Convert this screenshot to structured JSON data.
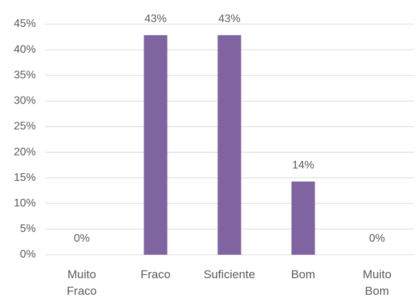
{
  "chart_data": {
    "type": "bar",
    "categories": [
      "Muito Fraco",
      "Fraco",
      "Suficiente",
      "Bom",
      "Muito Bom"
    ],
    "values": [
      0,
      42.86,
      42.86,
      14.29,
      0
    ],
    "value_labels": [
      "0%",
      "43%",
      "43%",
      "14%",
      "0%"
    ],
    "color": "#8064a2",
    "ylim": [
      0,
      45
    ],
    "yticks": [
      {
        "value": 0,
        "label": "0%"
      },
      {
        "value": 5,
        "label": "5%"
      },
      {
        "value": 10,
        "label": "10%"
      },
      {
        "value": 15,
        "label": "15%"
      },
      {
        "value": 20,
        "label": "20%"
      },
      {
        "value": 25,
        "label": "25%"
      },
      {
        "value": 30,
        "label": "30%"
      },
      {
        "value": 35,
        "label": "35%"
      },
      {
        "value": 40,
        "label": "40%"
      },
      {
        "value": 45,
        "label": "45%"
      }
    ],
    "grid": true
  }
}
